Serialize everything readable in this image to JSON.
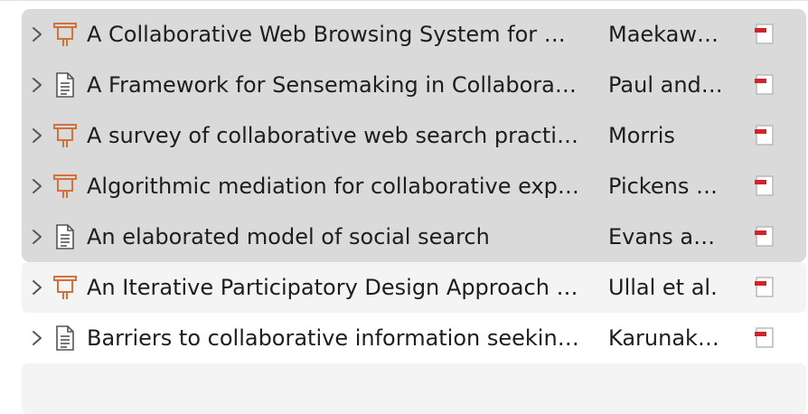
{
  "rows": [
    {
      "title": "A Collaborative Web Browsing System for …",
      "creator": "Maekaw…",
      "item_type": "presentation-icon"
    },
    {
      "title": "A Framework for Sensemaking in Collabora…",
      "creator": "Paul and…",
      "item_type": "document-icon"
    },
    {
      "title": "A survey of collaborative web search practi…",
      "creator": "Morris",
      "item_type": "presentation-icon"
    },
    {
      "title": "Algorithmic mediation for collaborative exp…",
      "creator": "Pickens …",
      "item_type": "presentation-icon"
    },
    {
      "title": "An elaborated model of social search",
      "creator": "Evans a…",
      "item_type": "document-icon"
    },
    {
      "title": "An Iterative Participatory Design Approach …",
      "creator": "Ullal et al.",
      "item_type": "presentation-icon"
    },
    {
      "title": "Barriers to collaborative information seekin…",
      "creator": "Karunak…",
      "item_type": "document-icon"
    }
  ],
  "colors": {
    "selection": "#dadada",
    "alt_row": "#f4f4f4",
    "presentation_icon": "#d4703a",
    "pdf_red": "#d2232a"
  }
}
